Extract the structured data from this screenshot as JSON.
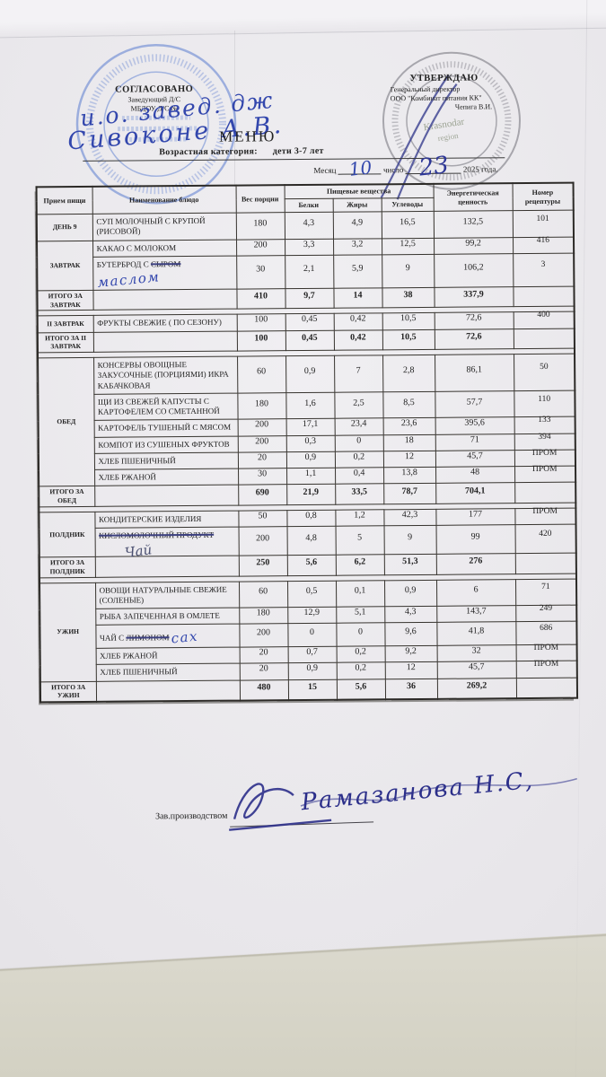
{
  "header": {
    "approved_left": {
      "title": "СОГЛАСОВАНО",
      "line1": "Заведующий Д/С",
      "line2": "МБДОУ Д/С №",
      "handwriting1": "и.о. завед. дж",
      "handwriting2": "Сивоконе  А.В."
    },
    "approved_right": {
      "title": "УТВЕРЖДАЮ",
      "line1": "Генеральный директор",
      "line2": "ООО \"Комбинат питания КК\"",
      "line3": "Чепига В.И.",
      "stamp_line1": "Krasnodar",
      "stamp_line2": "region"
    },
    "title": "МЕНЮ",
    "category_label": "Возрастная категория:",
    "category_value": "дети 3-7 лет",
    "date_line": {
      "month_label": "Месяц",
      "month_value": "10",
      "day_label": "число",
      "day_value": "23",
      "year_label": "2025 года."
    }
  },
  "table": {
    "headers": {
      "meal": "Прием пищи",
      "dish": "Наименование блюдо",
      "weight": "Вес порции",
      "nutrients": "Пищевые вещества",
      "protein": "Белки",
      "fat": "Жиры",
      "carbs": "Углеводы",
      "energy": "Энергетическая ценность",
      "recipe": "Номер рецептуры"
    },
    "rows": [
      {
        "group": "ДЕНЬ 9",
        "gspan": 1,
        "name": "СУП МОЛОЧНЫЙ С КРУПОЙ (РИСОВОЙ)",
        "v": [
          "180",
          "4,3",
          "4,9",
          "16,5",
          "132,5",
          "101"
        ]
      },
      {
        "group": "ЗАВТРАК",
        "gspan": 2,
        "name": "КАКАО С МОЛОКОМ",
        "v": [
          "200",
          "3,3",
          "3,2",
          "12,5",
          "99,2",
          "416"
        ]
      },
      {
        "parts": [
          {
            "t": "БУТЕРБРОД С "
          },
          {
            "t": "СЫРОМ",
            "strike": true
          },
          {
            "t": "маслом",
            "hand": true
          }
        ],
        "v": [
          "30",
          "2,1",
          "5,9",
          "9",
          "106,2",
          "3"
        ]
      },
      {
        "group": "ИТОГО ЗА ЗАВТРАК",
        "gspan": 1,
        "total": true,
        "name": "",
        "v": [
          "410",
          "9,7",
          "14",
          "38",
          "337,9",
          ""
        ]
      },
      {
        "type": "gap"
      },
      {
        "group": "II ЗАВТРАК",
        "gspan": 1,
        "name": "ФРУКТЫ СВЕЖИЕ ( ПО СЕЗОНУ)",
        "v": [
          "100",
          "0,45",
          "0,42",
          "10,5",
          "72,6",
          "400"
        ]
      },
      {
        "group": "ИТОГО ЗА II ЗАВТРАК",
        "gspan": 1,
        "total": true,
        "name": "",
        "v": [
          "100",
          "0,45",
          "0,42",
          "10,5",
          "72,6",
          ""
        ]
      },
      {
        "type": "gap"
      },
      {
        "group": "ОБЕД",
        "gspan": 6,
        "name": "КОНСЕРВЫ ОВОЩНЫЕ ЗАКУСОЧНЫЕ (ПОРЦИЯМИ) ИКРА КАБАЧКОВАЯ",
        "v": [
          "60",
          "0,9",
          "7",
          "2,8",
          "86,1",
          "50"
        ]
      },
      {
        "name": "ЩИ ИЗ СВЕЖЕЙ КАПУСТЫ С КАРТОФЕЛЕМ СО СМЕТАННОЙ",
        "v": [
          "180",
          "1,6",
          "2,5",
          "8,5",
          "57,7",
          "110"
        ]
      },
      {
        "name": "КАРТОФЕЛЬ ТУШЕНЫЙ С МЯСОМ",
        "v": [
          "200",
          "17,1",
          "23,4",
          "23,6",
          "395,6",
          "133"
        ]
      },
      {
        "name": "КОМПОТ ИЗ СУШЕНЫХ ФРУКТОВ",
        "v": [
          "200",
          "0,3",
          "0",
          "18",
          "71",
          "394"
        ]
      },
      {
        "name": "ХЛЕБ ПШЕНИЧНЫЙ",
        "v": [
          "20",
          "0,9",
          "0,2",
          "12",
          "45,7",
          "ПРОМ"
        ]
      },
      {
        "name": "ХЛЕБ РЖАНОЙ",
        "v": [
          "30",
          "1,1",
          "0,4",
          "13,8",
          "48",
          "ПРОМ"
        ]
      },
      {
        "group": "ИТОГО ЗА ОБЕД",
        "gspan": 1,
        "total": true,
        "name": "",
        "v": [
          "690",
          "21,9",
          "33,5",
          "78,7",
          "704,1",
          ""
        ]
      },
      {
        "type": "gap"
      },
      {
        "group": "ПОЛДНИК",
        "gspan": 2,
        "name": "КОНДИТЕРСКИЕ ИЗДЕЛИЯ",
        "v": [
          "50",
          "0,8",
          "1,2",
          "42,3",
          "177",
          "ПРОМ"
        ]
      },
      {
        "parts": [
          {
            "t": "КИСЛОМОЛОЧНЫЙ ПРОДУКТ",
            "strike": true
          },
          {
            "t": "Чай",
            "hand": true,
            "block": true
          }
        ],
        "v": [
          "200",
          "4,8",
          "5",
          "9",
          "99",
          "420"
        ]
      },
      {
        "group": "ИТОГО ЗА ПОЛДНИК",
        "gspan": 1,
        "total": true,
        "name": "",
        "v": [
          "250",
          "5,6",
          "6,2",
          "51,3",
          "276",
          ""
        ]
      },
      {
        "type": "gap"
      },
      {
        "group": "УЖИН",
        "gspan": 5,
        "name": "ОВОЩИ НАТУРАЛЬНЫЕ СВЕЖИЕ (СОЛЕНЫЕ)",
        "v": [
          "60",
          "0,5",
          "0,1",
          "0,9",
          "6",
          "71"
        ]
      },
      {
        "name": "РЫБА ЗАПЕЧЕННАЯ В ОМЛЕТЕ",
        "v": [
          "180",
          "12,9",
          "5,1",
          "4,3",
          "143,7",
          "249"
        ]
      },
      {
        "parts": [
          {
            "t": "ЧАЙ С "
          },
          {
            "t": "ЛИМОНОМ",
            "strike": true
          },
          {
            "t": "сах",
            "hand": true
          }
        ],
        "v": [
          "200",
          "0",
          "0",
          "9,6",
          "41,8",
          "686"
        ]
      },
      {
        "name": "ХЛЕБ РЖАНОЙ",
        "v": [
          "20",
          "0,7",
          "0,2",
          "9,2",
          "32",
          "ПРОМ"
        ]
      },
      {
        "name": "ХЛЕБ ПШЕНИЧНЫЙ",
        "v": [
          "20",
          "0,9",
          "0,2",
          "12",
          "45,7",
          "ПРОМ"
        ]
      },
      {
        "group": "ИТОГО ЗА УЖИН",
        "gspan": 1,
        "total": true,
        "name": "",
        "v": [
          "480",
          "15",
          "5,6",
          "36",
          "269,2",
          ""
        ]
      }
    ]
  },
  "footer": {
    "label": "Зав.производством",
    "signature": "Рамазанова  Н.С,"
  }
}
